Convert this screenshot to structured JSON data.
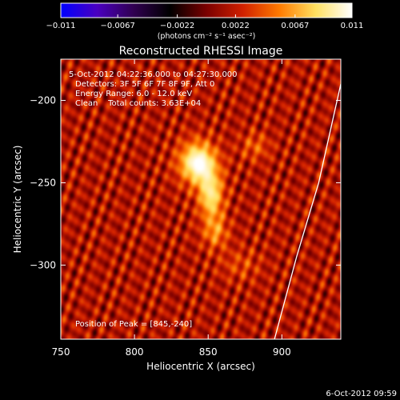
{
  "chart_data": {
    "type": "heatmap",
    "title": "Reconstructed RHESSI Image",
    "xlabel": "Heliocentric X (arcsec)",
    "ylabel": "Heliocentric Y (arcsec)",
    "xlim": [
      750,
      940
    ],
    "ylim": [
      -345,
      -175
    ],
    "x_ticks": [
      750,
      800,
      850,
      900
    ],
    "y_ticks": [
      -200,
      -250,
      -300
    ],
    "colorbar": {
      "range": [
        -0.011,
        0.011
      ],
      "tick_values": [
        -0.011,
        -0.0067,
        -0.0022,
        0.0022,
        0.0067,
        0.011
      ],
      "tick_labels": [
        "−0.011",
        "−0.0067",
        "−0.0022",
        "0.0022",
        "0.0067",
        "0.011"
      ],
      "unit_label": "(photons cm⁻² s⁻¹ asec⁻²)",
      "stops": [
        "#0000ff",
        "#4a00c0",
        "#300050",
        "#000000",
        "#7a0000",
        "#d02000",
        "#ff7a00",
        "#ffe060",
        "#ffffff"
      ]
    },
    "info_lines": [
      "5-Oct-2012 04:22:36.000 to 04:27:30.000",
      "Detectors: 3F 5F 6F 7F 8F 9F, Att 0",
      "Energy Range: 6.0 - 12.0 keV",
      "Clean    Total counts: 3.63E+04"
    ],
    "peak_label": "Position of Peak = [845,-240]",
    "peak": {
      "x": 845,
      "y": -240
    },
    "sources": [
      {
        "x": 843,
        "y": -238,
        "sx": 9,
        "sy": 9,
        "amp": 1.0
      },
      {
        "x": 852,
        "y": -258,
        "sx": 6,
        "sy": 10,
        "amp": 0.75
      },
      {
        "x": 855,
        "y": -280,
        "sx": 6,
        "sy": 7,
        "amp": 0.45
      },
      {
        "x": 882,
        "y": -228,
        "sx": 7,
        "sy": 6,
        "amp": 0.3
      },
      {
        "x": 872,
        "y": -300,
        "sx": 10,
        "sy": 7,
        "amp": 0.22
      }
    ],
    "limb_points": [
      [
        940,
        -190
      ],
      [
        925,
        -250
      ],
      [
        910,
        -295
      ],
      [
        895,
        -345
      ]
    ]
  },
  "footer_timestamp": "6-Oct-2012 09:59"
}
